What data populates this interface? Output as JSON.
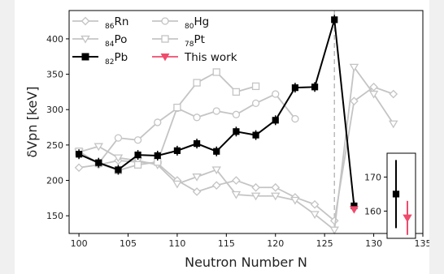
{
  "chart_data": {
    "type": "line",
    "xlabel": "Neutron Number N",
    "ylabel": "δVpn [keV]",
    "xlim": [
      99,
      135
    ],
    "ylim": [
      125,
      440
    ],
    "xticks": [
      100,
      105,
      110,
      115,
      120,
      125,
      130,
      135
    ],
    "yticks": [
      150,
      200,
      250,
      300,
      350,
      400
    ],
    "legend_placement": "top-left",
    "reference_line": {
      "x": 126,
      "style": "dashed",
      "color": "#bbbbbb"
    },
    "series": [
      {
        "name": "Rn",
        "mass_label": "86",
        "color": "#c4c4c4",
        "marker": "diamond-open",
        "x": [
          100,
          102,
          104,
          106,
          108,
          110,
          112,
          114,
          116,
          118,
          120,
          122,
          124,
          126,
          128,
          130,
          132
        ],
        "y": [
          218,
          222,
          228,
          226,
          224,
          200,
          184,
          193,
          200,
          190,
          190,
          176,
          166,
          143,
          312,
          332,
          322
        ]
      },
      {
        "name": "Po",
        "mass_label": "84",
        "color": "#c4c4c4",
        "marker": "triangle-down-open",
        "x": [
          100,
          102,
          104,
          106,
          108,
          110,
          112,
          114,
          116,
          118,
          120,
          122,
          124,
          126,
          128,
          130,
          132
        ],
        "y": [
          240,
          248,
          232,
          228,
          222,
          195,
          205,
          215,
          180,
          178,
          178,
          172,
          152,
          130,
          360,
          322,
          280
        ]
      },
      {
        "name": "Pb",
        "mass_label": "82",
        "color": "#000000",
        "marker": "square-filled",
        "x": [
          100,
          102,
          104,
          106,
          108,
          110,
          112,
          114,
          116,
          118,
          120,
          122,
          124,
          126,
          128
        ],
        "y": [
          237,
          225,
          215,
          236,
          235,
          242,
          252,
          241,
          269,
          264,
          285,
          331,
          332,
          427,
          164
        ]
      },
      {
        "name": "Hg",
        "mass_label": "80",
        "color": "#c4c4c4",
        "marker": "circle-open",
        "x": [
          100,
          102,
          104,
          106,
          108,
          110,
          112,
          114,
          116,
          118,
          120,
          122
        ],
        "y": [
          237,
          224,
          260,
          257,
          282,
          302,
          289,
          298,
          293,
          309,
          322,
          287
        ]
      },
      {
        "name": "Pt",
        "mass_label": "78",
        "color": "#c4c4c4",
        "marker": "square-open",
        "x": [
          100,
          102,
          104,
          106,
          108,
          110,
          112,
          114,
          116,
          118
        ],
        "y": [
          241,
          224,
          214,
          222,
          226,
          303,
          338,
          353,
          325,
          333
        ]
      },
      {
        "name": "This work",
        "mass_label": "",
        "color": "#ef4b6c",
        "marker": "triangle-down-filled",
        "x": [
          128
        ],
        "y": [
          159
        ]
      }
    ],
    "inset": {
      "yticks": [
        160,
        170
      ],
      "ylim": [
        152,
        177
      ],
      "points": [
        {
          "series": "Pb",
          "value": 165,
          "err": 10,
          "color": "#000000"
        },
        {
          "series": "This work",
          "value": 158,
          "err": 5,
          "color": "#ef4b6c"
        }
      ]
    }
  }
}
